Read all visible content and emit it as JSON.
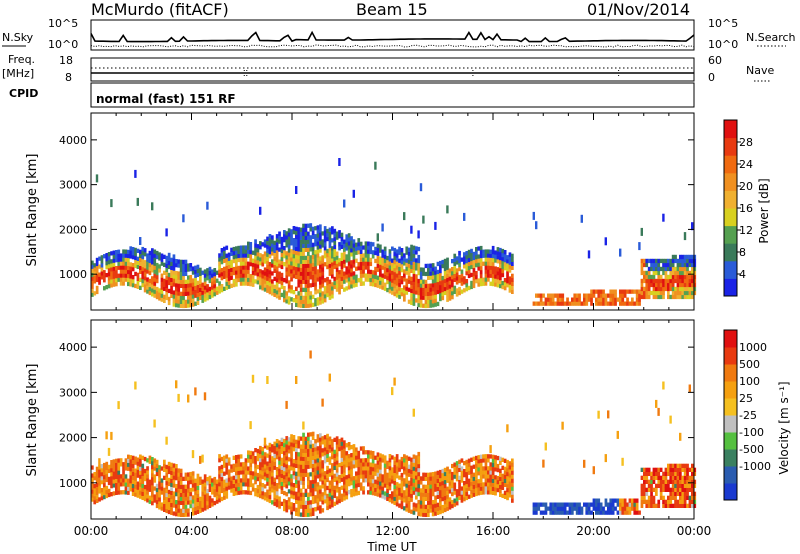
{
  "header": {
    "station": "McMurdo (fitACF)",
    "beam": "Beam 15",
    "date": "01/Nov/2014"
  },
  "chart_data": [
    {
      "type": "line",
      "panel": "noise",
      "left_label": "N.Sky",
      "right_label": "N.Search",
      "left_ticks": [
        "10^5",
        "10^0"
      ],
      "right_ticks": [
        "10^5",
        "10^0"
      ],
      "scale": "log"
    },
    {
      "type": "line",
      "panel": "frequency-nave",
      "left_label": "Freq. [MHz]",
      "right_label": "Nave",
      "left_ticks": [
        "18",
        "8"
      ],
      "right_ticks": [
        "60",
        "0"
      ]
    },
    {
      "type": "table",
      "panel": "cpid",
      "label": "CPID",
      "value": "normal (fast) 151 RF"
    },
    {
      "type": "heatmap",
      "panel": "power",
      "ylabel": "Slant Range [km]",
      "xlabel": "",
      "yticks": [
        "1000",
        "2000",
        "3000",
        "4000"
      ],
      "ylim": [
        200,
        4600
      ],
      "xlim_hours": [
        0,
        24
      ],
      "colorbar": {
        "label": "Power [dB]",
        "ticks": [
          "4",
          "8",
          "12",
          "16",
          "20",
          "24",
          "28"
        ],
        "range": [
          0,
          32
        ],
        "colors": [
          "#1a23e6",
          "#2a5bd8",
          "#3a7a5a",
          "#55a050",
          "#d8d020",
          "#f0b030",
          "#f09020",
          "#f06a10",
          "#e83a10",
          "#e01010"
        ]
      }
    },
    {
      "type": "heatmap",
      "panel": "velocity",
      "ylabel": "Slant Range [km]",
      "xlabel": "Time UT",
      "yticks": [
        "1000",
        "2000",
        "3000",
        "4000"
      ],
      "ylim": [
        200,
        4600
      ],
      "xlim_hours": [
        0,
        24
      ],
      "xticks": [
        "00:00",
        "04:00",
        "08:00",
        "12:00",
        "16:00",
        "20:00",
        "00:00"
      ],
      "colorbar": {
        "label": "Velocity [m s⁻¹]",
        "ticks": [
          "1000",
          "500",
          "100",
          "25",
          "-25",
          "-100",
          "-500",
          "-1000"
        ],
        "colors": [
          "#1a3ad0",
          "#2a5cb0",
          "#3a8060",
          "#55c040",
          "#c0c0c0",
          "#f5c020",
          "#f5a010",
          "#f07a10",
          "#e83a10",
          "#e01010"
        ]
      }
    }
  ]
}
